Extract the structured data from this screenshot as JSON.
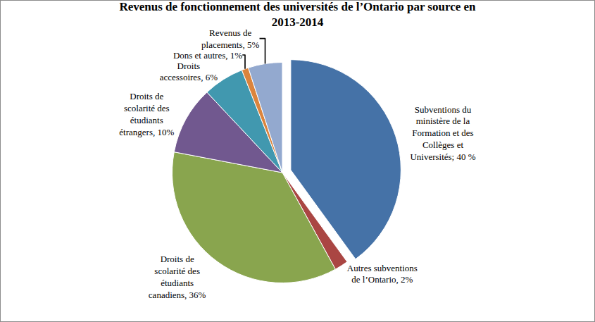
{
  "chart_data": {
    "type": "pie",
    "title": "Revenus de fonctionnement des universités de l’Ontario par source en 2013-2014",
    "categories": [
      "Subventions du ministère de la Formation et des Collèges et Universités",
      "Autres subventions de l’Ontario",
      "Droits de scolarité des étudiants canadiens",
      "Droits de scolarité des étudiants étrangers",
      "Droits accessoires",
      "Dons et autres",
      "Revenus de placements"
    ],
    "values": [
      40,
      2,
      36,
      10,
      6,
      1,
      5
    ],
    "value_labels": [
      "Subventions du ministère de la Formation et des Collèges et Universités; 40 %",
      "Autres subventions de l’Ontario, 2%",
      "Droits de scolarité des étudiants canadiens, 36%",
      "Droits de scolarité des étudiants étrangers, 10%",
      "Droits accessoires, 6%",
      "Dons et autres, 1%",
      "Revenus de placements, 5%"
    ],
    "colors": [
      "#4572A7",
      "#AA4643",
      "#89A54E",
      "#71588F",
      "#4198AF",
      "#DB843D",
      "#93A9CF"
    ],
    "data_labels": true
  }
}
